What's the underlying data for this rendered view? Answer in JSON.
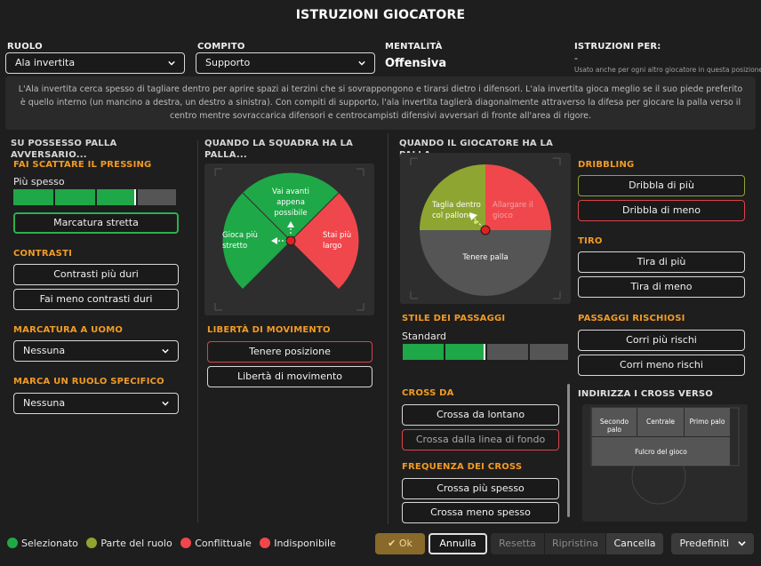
{
  "header": {
    "title": "ISTRUZIONI GIOCATORE"
  },
  "top": {
    "ruolo_label": "RUOLO",
    "ruolo_value": "Ala invertita",
    "compito_label": "COMPITO",
    "compito_value": "Supporto",
    "mentalita_label": "MENTALITÀ",
    "mentalita_value": "Offensiva",
    "istruzioni_label": "ISTRUZIONI PER:",
    "istruzioni_value": "-",
    "istruzioni_note": "Usato anche per ogni altro giocatore in questa posizione"
  },
  "description": "L'Ala invertita cerca spesso di tagliare dentro per aprire spazi ai terzini che si sovrappongono e tirarsi dietro i difensori. L'ala invertita gioca meglio se il suo piede preferito è quello interno (un mancino a destra, un destro a sinistra). Con compiti di supporto, l'ala invertita taglierà diagonalmente attraverso la difesa per giocare la palla verso il centro mentre sovraccarica difensori e centrocampisti difensivi avversari di fronte all'area di rigore.",
  "col1": {
    "heading": "SU POSSESSO PALLA AVVERSARIO...",
    "pressing_title": "FAI SCATTARE IL PRESSING",
    "pressing_value": "Più spesso",
    "pressing_level": 3,
    "pressing_max": 4,
    "marcatura_stretta": "Marcatura stretta",
    "contrasti_title": "CONTRASTI",
    "contrasti_duri": "Contrasti più duri",
    "contrasti_meno": "Fai meno contrasti duri",
    "marcatura_uomo_title": "MARCATURA A UOMO",
    "marcatura_uomo_value": "Nessuna",
    "marca_ruolo_title": "MARCA UN RUOLO SPECIFICO",
    "marca_ruolo_value": "Nessuna"
  },
  "col2": {
    "heading": "QUANDO LA SQUADRA HA LA PALLA...",
    "zone_top": "Vai avanti appena possibile",
    "zone_left": "Gioca più stretto",
    "zone_right": "Stai più largo",
    "liberta_title": "LIBERTÀ DI MOVIMENTO",
    "tenere_posizione": "Tenere posizione",
    "liberta_movimento": "Libertà di movimento"
  },
  "col3": {
    "heading": "QUANDO IL GIOCATORE HA LA PALLA...",
    "zone_left": "Taglia dentro col pallone",
    "zone_right": "Allargare il gioco",
    "zone_bottom": "Tenere palla",
    "stile_title": "STILE DEI PASSAGGI",
    "stile_value": "Standard",
    "stile_level": 2,
    "stile_max": 4,
    "cross_da_title": "CROSS DA",
    "cross_lontano": "Crossa da lontano",
    "cross_fondo": "Crossa dalla linea di fondo",
    "freq_title": "FREQUENZA DEI CROSS",
    "cross_spesso": "Crossa più spesso",
    "cross_meno": "Crossa meno spesso"
  },
  "col4": {
    "dribbling_title": "DRIBBLING",
    "dribbla_piu": "Dribbla di più",
    "dribbla_meno": "Dribbla di meno",
    "tiro_title": "TIRO",
    "tira_piu": "Tira di più",
    "tira_meno": "Tira di meno",
    "rischiosi_title": "PASSAGGI RISCHIOSI",
    "corri_piu": "Corri più rischi",
    "corri_meno": "Corri meno rischi",
    "indirizza_title": "INDIRIZZA I CROSS VERSO",
    "secondo_palo": "Secondo palo",
    "centrale": "Centrale",
    "primo_palo": "Primo palo",
    "fulcro": "Fulcro del gioco"
  },
  "legend": {
    "selezionato": "Selezionato",
    "parte_ruolo": "Parte del ruolo",
    "conflittuale": "Conflittuale",
    "indisponibile": "Indisponibile"
  },
  "footer": {
    "ok": "Ok",
    "annulla": "Annulla",
    "resetta": "Resetta",
    "ripristina": "Ripristina",
    "cancella": "Cancella",
    "predefiniti": "Predefiniti"
  },
  "colors": {
    "green": "#1fa847",
    "olive": "#8fa531",
    "red": "#f0474c",
    "orange": "#f29b24",
    "grey": "#555555"
  }
}
